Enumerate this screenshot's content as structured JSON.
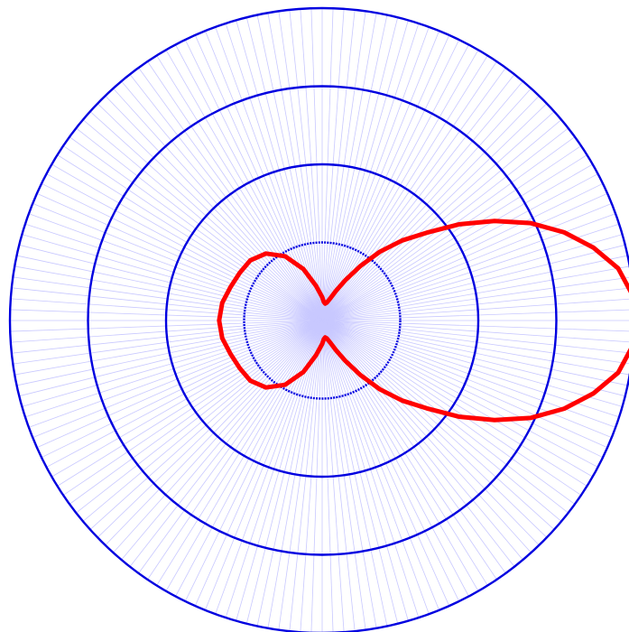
{
  "chart_data": {
    "type": "polar-line",
    "title": "",
    "radial_rings": [
      1,
      2,
      3,
      4
    ],
    "r_max": 4,
    "spoke_step_deg": 2,
    "grid": true,
    "colors": {
      "ring": "#0000e0",
      "spoke": "#c8c8ff",
      "series": "#ff0000"
    },
    "series": [
      {
        "angle_deg": [
          0,
          5,
          10,
          15,
          20,
          25,
          30,
          35,
          40,
          45,
          50,
          55,
          60,
          65,
          70,
          75,
          80,
          85,
          90,
          100,
          110,
          120,
          130,
          140,
          150,
          160,
          170,
          180,
          190,
          200,
          210,
          220,
          230,
          240,
          250,
          260,
          270,
          275,
          280,
          285,
          290,
          295,
          300,
          305,
          310,
          315,
          320,
          325,
          330,
          335,
          340,
          345,
          350,
          355,
          360
        ],
        "r": [
          4.05,
          3.98,
          3.85,
          3.6,
          3.3,
          2.95,
          2.55,
          2.15,
          1.75,
          1.45,
          1.15,
          0.85,
          0.6,
          0.42,
          0.3,
          0.24,
          0.22,
          0.24,
          0.3,
          0.45,
          0.7,
          0.95,
          1.12,
          1.2,
          1.22,
          1.25,
          1.3,
          1.32,
          1.3,
          1.25,
          1.22,
          1.2,
          1.12,
          0.95,
          0.7,
          0.45,
          0.3,
          0.24,
          0.22,
          0.24,
          0.3,
          0.42,
          0.6,
          0.85,
          1.15,
          1.45,
          1.75,
          2.15,
          2.55,
          2.95,
          3.3,
          3.6,
          3.85,
          3.98,
          4.05
        ]
      }
    ]
  }
}
